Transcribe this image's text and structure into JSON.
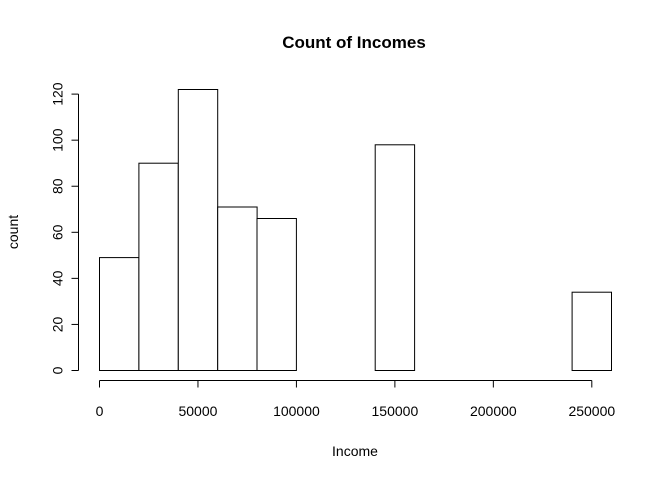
{
  "chart_data": {
    "type": "bar",
    "title": "Count of Incomes",
    "xlabel": "Income",
    "ylabel": "count",
    "bin_edges": [
      0,
      20000,
      40000,
      60000,
      80000,
      100000,
      120000,
      140000,
      160000,
      180000,
      200000,
      220000,
      240000,
      260000
    ],
    "values": [
      49,
      90,
      122,
      71,
      66,
      0,
      0,
      98,
      0,
      0,
      0,
      0,
      34
    ],
    "xticks": [
      0,
      50000,
      100000,
      150000,
      200000,
      250000
    ],
    "yticks": [
      0,
      20,
      40,
      60,
      80,
      100,
      120
    ],
    "xlim": [
      0,
      260000
    ],
    "ylim": [
      0,
      122
    ],
    "grid": false,
    "legend": "none"
  }
}
